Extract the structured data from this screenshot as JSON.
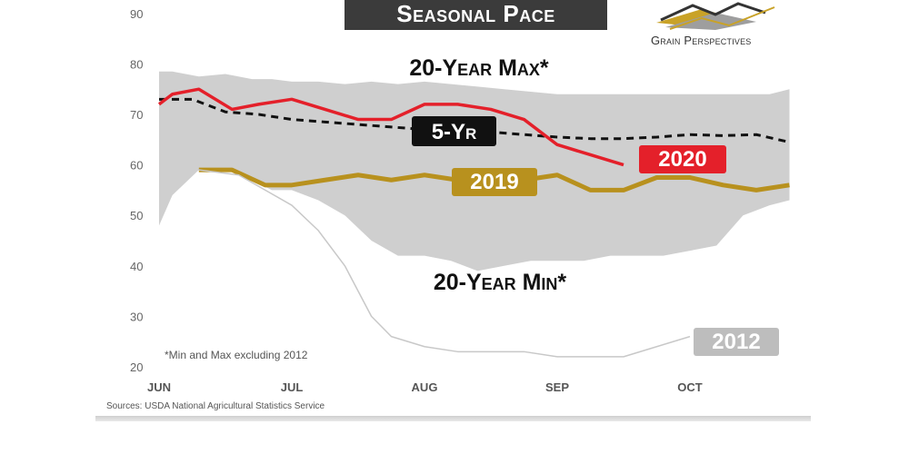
{
  "title": "Seasonal Pace",
  "logo": {
    "text": "Grain Perspectives",
    "icon": "grain-perspectives-logo-icon"
  },
  "source": "Sources: USDA National Agricultural Statistics Service",
  "chart_data": {
    "type": "line",
    "x_ticks": [
      "Jun",
      "Jul",
      "Aug",
      "Sep",
      "Oct"
    ],
    "y_ticks": [
      20,
      30,
      40,
      50,
      60,
      70,
      80,
      90
    ],
    "ylim": [
      20,
      90
    ],
    "grid": false,
    "band": {
      "upper_label": "20-Year Max*",
      "lower_label": "20-Year Min*",
      "x": [
        0,
        0.1,
        0.3,
        0.5,
        0.7,
        0.85,
        1.0,
        1.2,
        1.4,
        1.6,
        1.8,
        2.0,
        2.2,
        2.4,
        2.6,
        2.8,
        3.0,
        3.2,
        3.4,
        3.6,
        3.8,
        4.0,
        4.2,
        4.4,
        4.6,
        4.75
      ],
      "upper": [
        78.5,
        78.5,
        77.5,
        78,
        77,
        77,
        76.5,
        76.5,
        76,
        76.5,
        76,
        76.5,
        76,
        75.5,
        75,
        74.5,
        74,
        74,
        74,
        74,
        74,
        74,
        74,
        74,
        74,
        75
      ],
      "lower": [
        48,
        54,
        59,
        59,
        57,
        55,
        55,
        53,
        50,
        45,
        42,
        42,
        41,
        39,
        40,
        41,
        41,
        41,
        42,
        42,
        42,
        43,
        44,
        50,
        52,
        53
      ]
    },
    "series": [
      {
        "name": "5-Yr",
        "color": "#111111",
        "style": "dashed",
        "x": [
          0,
          0.25,
          0.5,
          0.75,
          1.0,
          1.25,
          1.5,
          1.75,
          2.0,
          2.25,
          2.5,
          2.75,
          3.0,
          3.25,
          3.5,
          3.75,
          4.0,
          4.25,
          4.5,
          4.75
        ],
        "values": [
          73,
          73,
          70.5,
          70,
          69,
          68.5,
          68,
          67.5,
          67,
          67,
          66.5,
          66,
          65.5,
          65.2,
          65.2,
          65.5,
          66,
          65.8,
          66,
          64.5
        ]
      },
      {
        "name": "2020",
        "color": "#e4202a",
        "style": "solid",
        "x": [
          0,
          0.1,
          0.3,
          0.55,
          0.75,
          1.0,
          1.25,
          1.5,
          1.75,
          2.0,
          2.25,
          2.5,
          2.75,
          3.0,
          3.25,
          3.5
        ],
        "values": [
          72,
          74,
          75,
          71,
          72,
          73,
          71,
          69,
          69,
          72,
          72,
          71,
          69,
          64,
          62,
          60
        ]
      },
      {
        "name": "2019",
        "color": "#b8911e",
        "style": "solid",
        "x": [
          0.3,
          0.55,
          0.8,
          1.0,
          1.25,
          1.5,
          1.75,
          2.0,
          2.25,
          2.5,
          2.75,
          3.0,
          3.25,
          3.5,
          3.75,
          4.0,
          4.25,
          4.5,
          4.75
        ],
        "values": [
          59,
          59,
          56,
          56,
          57,
          58,
          57,
          58,
          57,
          57,
          57,
          58,
          55,
          55,
          57.5,
          57.5,
          56,
          55,
          56
        ]
      },
      {
        "name": "2012",
        "color": "#c8c8c8",
        "style": "solid",
        "x": [
          0.3,
          0.6,
          0.8,
          1.0,
          1.2,
          1.4,
          1.5,
          1.6,
          1.75,
          2.0,
          2.25,
          2.5,
          2.75,
          3.0,
          3.25,
          3.5,
          3.75,
          4.0
        ],
        "values": [
          59,
          58,
          55,
          52,
          47,
          40,
          35,
          30,
          26,
          24,
          23,
          23,
          23,
          22,
          22,
          22,
          24,
          26
        ]
      }
    ],
    "annotations": {
      "footnote": "*Min and Max excluding 2012"
    }
  }
}
